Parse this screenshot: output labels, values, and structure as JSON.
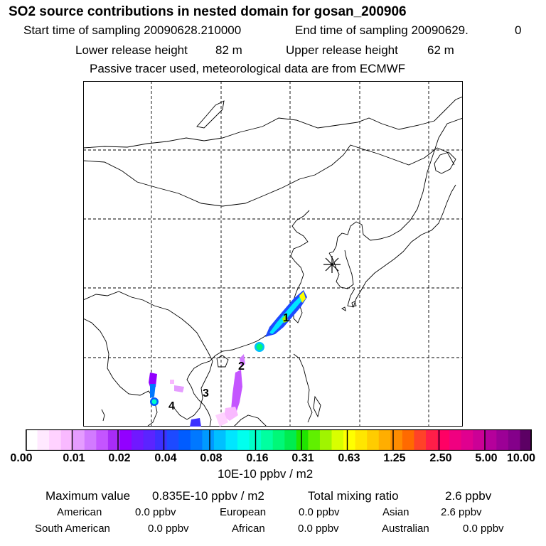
{
  "header": {
    "title": "SO2 source contributions in nested domain for gosan_200906",
    "start_label": "Start time of sampling 20090628.210000",
    "end_label": "End time of sampling 20090629.",
    "end_hour": "0",
    "lower_label": "Lower release height",
    "lower_value": "82 m",
    "upper_label": "Upper release height",
    "upper_value": "62 m",
    "tracer_note": "Passive tracer used, meteorological data are from ECMWF"
  },
  "map": {
    "region_labels": [
      "1",
      "2",
      "3",
      "4"
    ],
    "receptor_marker": "asterisk-icon"
  },
  "legend": {
    "ticks": [
      "0.00",
      "0.01",
      "0.02",
      "0.04",
      "0.08",
      "0.16",
      "0.31",
      "0.63",
      "1.25",
      "2.50",
      "5.00",
      "10.00"
    ],
    "colors": [
      "#ffffff",
      "#ffe9ff",
      "#ffd2ff",
      "#f9b9ff",
      "#e59cff",
      "#d27aff",
      "#c455ff",
      "#a82cf7",
      "#9200ff",
      "#7018ff",
      "#5b24ff",
      "#3c30ff",
      "#1d4aff",
      "#005cff",
      "#0078ff",
      "#0099ff",
      "#00c0ff",
      "#00e6ff",
      "#00ffee",
      "#00ffc8",
      "#00ffa0",
      "#00f878",
      "#00ec50",
      "#20e400",
      "#60f000",
      "#a0f400",
      "#d8ff00",
      "#ffff00",
      "#ffe600",
      "#ffcc00",
      "#ffae00",
      "#ff8c00",
      "#ff6a00",
      "#ff4228",
      "#ff1e48",
      "#ff0064",
      "#f00080",
      "#e0008f",
      "#cc0096",
      "#b5009b",
      "#9c0096",
      "#84008a",
      "#5c0064"
    ],
    "unit": "10E-10 ppbv / m2"
  },
  "summary": {
    "max_label": "Maximum value",
    "max_value": "0.835E-10 ppbv / m2",
    "total_label": "Total mixing ratio",
    "total_value": "2.6 ppbv",
    "rows": [
      [
        {
          "name": "American",
          "value": "0.0 ppbv"
        },
        {
          "name": "European",
          "value": "0.0 ppbv"
        },
        {
          "name": "Asian",
          "value": "2.6 ppbv"
        }
      ],
      [
        {
          "name": "South American",
          "value": "0.0 ppbv"
        },
        {
          "name": "African",
          "value": "0.0 ppbv"
        },
        {
          "name": "Australian",
          "value": "0.0 ppbv"
        }
      ]
    ]
  }
}
